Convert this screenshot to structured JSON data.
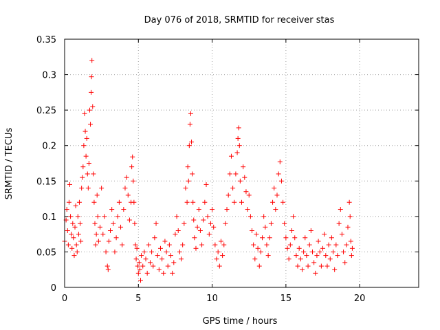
{
  "chart_data": {
    "type": "scatter",
    "title": "Day 076 of 2018, SRMTID for receiver stas",
    "xlabel": "GPS time / hours",
    "ylabel": "SRMTID / TECUs",
    "xlim": [
      0,
      24
    ],
    "ylim": [
      0,
      0.35
    ],
    "xticks": [
      "0",
      "5",
      "10",
      "15",
      "20"
    ],
    "xtick_values": [
      0,
      5,
      10,
      15,
      20
    ],
    "yticks": [
      "0",
      "0.05",
      "0.1",
      "0.15",
      "0.2",
      "0.25",
      "0.3",
      "0.35"
    ],
    "ytick_values": [
      0,
      0.05,
      0.1,
      0.15,
      0.2,
      0.25,
      0.3,
      0.35
    ],
    "grid": true,
    "marker": "+",
    "color": "#ff0000",
    "series": [
      {
        "name": "SRMTID",
        "points": [
          [
            0.0,
            0.065
          ],
          [
            0.1,
            0.095
          ],
          [
            0.15,
            0.11
          ],
          [
            0.2,
            0.08
          ],
          [
            0.25,
            0.06
          ],
          [
            0.3,
            0.12
          ],
          [
            0.35,
            0.145
          ],
          [
            0.4,
            0.1
          ],
          [
            0.45,
            0.075
          ],
          [
            0.5,
            0.055
          ],
          [
            0.55,
            0.09
          ],
          [
            0.6,
            0.07
          ],
          [
            0.65,
            0.045
          ],
          [
            0.7,
            0.085
          ],
          [
            0.75,
            0.115
          ],
          [
            0.8,
            0.06
          ],
          [
            0.85,
            0.05
          ],
          [
            0.9,
            0.1
          ],
          [
            0.95,
            0.075
          ],
          [
            1.0,
            0.12
          ],
          [
            1.05,
            0.09
          ],
          [
            1.1,
            0.065
          ],
          [
            1.15,
            0.14
          ],
          [
            1.2,
            0.155
          ],
          [
            1.25,
            0.17
          ],
          [
            1.3,
            0.2
          ],
          [
            1.35,
            0.245
          ],
          [
            1.4,
            0.22
          ],
          [
            1.45,
            0.185
          ],
          [
            1.5,
            0.21
          ],
          [
            1.55,
            0.16
          ],
          [
            1.6,
            0.14
          ],
          [
            1.65,
            0.175
          ],
          [
            1.7,
            0.25
          ],
          [
            1.75,
            0.23
          ],
          [
            1.8,
            0.275
          ],
          [
            1.82,
            0.297
          ],
          [
            1.85,
            0.32
          ],
          [
            1.9,
            0.255
          ],
          [
            1.95,
            0.16
          ],
          [
            2.0,
            0.12
          ],
          [
            2.05,
            0.09
          ],
          [
            2.1,
            0.06
          ],
          [
            2.15,
            0.075
          ],
          [
            2.2,
            0.13
          ],
          [
            2.25,
            0.1
          ],
          [
            2.3,
            0.065
          ],
          [
            2.4,
            0.085
          ],
          [
            2.5,
            0.14
          ],
          [
            2.6,
            0.075
          ],
          [
            2.7,
            0.1
          ],
          [
            2.8,
            0.05
          ],
          [
            2.9,
            0.03
          ],
          [
            2.95,
            0.025
          ],
          [
            3.0,
            0.065
          ],
          [
            3.1,
            0.08
          ],
          [
            3.2,
            0.11
          ],
          [
            3.3,
            0.09
          ],
          [
            3.4,
            0.05
          ],
          [
            3.5,
            0.07
          ],
          [
            3.6,
            0.1
          ],
          [
            3.7,
            0.12
          ],
          [
            3.8,
            0.085
          ],
          [
            3.9,
            0.06
          ],
          [
            4.0,
            0.11
          ],
          [
            4.1,
            0.14
          ],
          [
            4.2,
            0.155
          ],
          [
            4.3,
            0.13
          ],
          [
            4.4,
            0.095
          ],
          [
            4.5,
            0.12
          ],
          [
            4.55,
            0.17
          ],
          [
            4.6,
            0.184
          ],
          [
            4.65,
            0.15
          ],
          [
            4.7,
            0.12
          ],
          [
            4.75,
            0.09
          ],
          [
            4.8,
            0.06
          ],
          [
            4.85,
            0.04
          ],
          [
            4.9,
            0.055
          ],
          [
            4.95,
            0.03
          ],
          [
            5.0,
            0.02
          ],
          [
            5.05,
            0.035
          ],
          [
            5.1,
            0.025
          ],
          [
            5.15,
            0.01
          ],
          [
            5.2,
            0.045
          ],
          [
            5.3,
            0.03
          ],
          [
            5.4,
            0.05
          ],
          [
            5.5,
            0.04
          ],
          [
            5.6,
            0.02
          ],
          [
            5.7,
            0.06
          ],
          [
            5.8,
            0.035
          ],
          [
            5.9,
            0.05
          ],
          [
            6.0,
            0.03
          ],
          [
            6.1,
            0.07
          ],
          [
            6.2,
            0.09
          ],
          [
            6.3,
            0.045
          ],
          [
            6.4,
            0.025
          ],
          [
            6.5,
            0.055
          ],
          [
            6.6,
            0.04
          ],
          [
            6.7,
            0.02
          ],
          [
            6.8,
            0.065
          ],
          [
            6.9,
            0.05
          ],
          [
            7.0,
            0.03
          ],
          [
            7.1,
            0.06
          ],
          [
            7.2,
            0.045
          ],
          [
            7.3,
            0.02
          ],
          [
            7.4,
            0.035
          ],
          [
            7.5,
            0.075
          ],
          [
            7.6,
            0.1
          ],
          [
            7.7,
            0.08
          ],
          [
            7.8,
            0.05
          ],
          [
            7.9,
            0.04
          ],
          [
            8.0,
            0.06
          ],
          [
            8.1,
            0.09
          ],
          [
            8.2,
            0.14
          ],
          [
            8.3,
            0.12
          ],
          [
            8.35,
            0.17
          ],
          [
            8.4,
            0.15
          ],
          [
            8.45,
            0.2
          ],
          [
            8.5,
            0.23
          ],
          [
            8.55,
            0.245
          ],
          [
            8.6,
            0.205
          ],
          [
            8.65,
            0.16
          ],
          [
            8.7,
            0.12
          ],
          [
            8.75,
            0.095
          ],
          [
            8.8,
            0.07
          ],
          [
            8.9,
            0.055
          ],
          [
            9.0,
            0.085
          ],
          [
            9.1,
            0.11
          ],
          [
            9.2,
            0.08
          ],
          [
            9.3,
            0.06
          ],
          [
            9.4,
            0.095
          ],
          [
            9.5,
            0.12
          ],
          [
            9.6,
            0.145
          ],
          [
            9.7,
            0.1
          ],
          [
            9.8,
            0.075
          ],
          [
            9.9,
            0.09
          ],
          [
            10.0,
            0.11
          ],
          [
            10.1,
            0.085
          ],
          [
            10.2,
            0.06
          ],
          [
            10.3,
            0.04
          ],
          [
            10.4,
            0.05
          ],
          [
            10.5,
            0.03
          ],
          [
            10.6,
            0.065
          ],
          [
            10.7,
            0.045
          ],
          [
            10.8,
            0.06
          ],
          [
            10.9,
            0.09
          ],
          [
            11.0,
            0.11
          ],
          [
            11.1,
            0.13
          ],
          [
            11.2,
            0.16
          ],
          [
            11.3,
            0.185
          ],
          [
            11.4,
            0.14
          ],
          [
            11.5,
            0.12
          ],
          [
            11.6,
            0.16
          ],
          [
            11.7,
            0.19
          ],
          [
            11.75,
            0.21
          ],
          [
            11.8,
            0.225
          ],
          [
            11.85,
            0.2
          ],
          [
            11.9,
            0.15
          ],
          [
            12.0,
            0.12
          ],
          [
            12.1,
            0.17
          ],
          [
            12.2,
            0.155
          ],
          [
            12.3,
            0.135
          ],
          [
            12.4,
            0.11
          ],
          [
            12.5,
            0.13
          ],
          [
            12.6,
            0.1
          ],
          [
            12.7,
            0.08
          ],
          [
            12.8,
            0.06
          ],
          [
            12.9,
            0.04
          ],
          [
            13.0,
            0.075
          ],
          [
            13.1,
            0.055
          ],
          [
            13.2,
            0.03
          ],
          [
            13.3,
            0.05
          ],
          [
            13.4,
            0.07
          ],
          [
            13.5,
            0.1
          ],
          [
            13.6,
            0.085
          ],
          [
            13.7,
            0.06
          ],
          [
            13.8,
            0.045
          ],
          [
            13.9,
            0.07
          ],
          [
            14.0,
            0.09
          ],
          [
            14.1,
            0.12
          ],
          [
            14.2,
            0.14
          ],
          [
            14.3,
            0.11
          ],
          [
            14.4,
            0.13
          ],
          [
            14.5,
            0.16
          ],
          [
            14.6,
            0.177
          ],
          [
            14.7,
            0.15
          ],
          [
            14.8,
            0.12
          ],
          [
            14.9,
            0.09
          ],
          [
            15.0,
            0.07
          ],
          [
            15.1,
            0.055
          ],
          [
            15.2,
            0.04
          ],
          [
            15.3,
            0.06
          ],
          [
            15.4,
            0.08
          ],
          [
            15.5,
            0.1
          ],
          [
            15.6,
            0.07
          ],
          [
            15.7,
            0.045
          ],
          [
            15.8,
            0.03
          ],
          [
            15.9,
            0.055
          ],
          [
            16.0,
            0.04
          ],
          [
            16.1,
            0.025
          ],
          [
            16.2,
            0.05
          ],
          [
            16.3,
            0.07
          ],
          [
            16.4,
            0.045
          ],
          [
            16.5,
            0.03
          ],
          [
            16.6,
            0.06
          ],
          [
            16.7,
            0.08
          ],
          [
            16.8,
            0.05
          ],
          [
            16.9,
            0.035
          ],
          [
            17.0,
            0.02
          ],
          [
            17.1,
            0.045
          ],
          [
            17.2,
            0.065
          ],
          [
            17.3,
            0.05
          ],
          [
            17.4,
            0.03
          ],
          [
            17.5,
            0.055
          ],
          [
            17.6,
            0.075
          ],
          [
            17.7,
            0.045
          ],
          [
            17.8,
            0.03
          ],
          [
            17.9,
            0.06
          ],
          [
            18.0,
            0.04
          ],
          [
            18.1,
            0.07
          ],
          [
            18.2,
            0.05
          ],
          [
            18.3,
            0.025
          ],
          [
            18.4,
            0.06
          ],
          [
            18.5,
            0.045
          ],
          [
            18.6,
            0.09
          ],
          [
            18.7,
            0.11
          ],
          [
            18.8,
            0.075
          ],
          [
            18.9,
            0.05
          ],
          [
            19.0,
            0.035
          ],
          [
            19.1,
            0.06
          ],
          [
            19.2,
            0.085
          ],
          [
            19.3,
            0.12
          ],
          [
            19.35,
            0.1
          ],
          [
            19.4,
            0.065
          ],
          [
            19.45,
            0.045
          ],
          [
            19.5,
            0.055
          ]
        ]
      }
    ]
  }
}
